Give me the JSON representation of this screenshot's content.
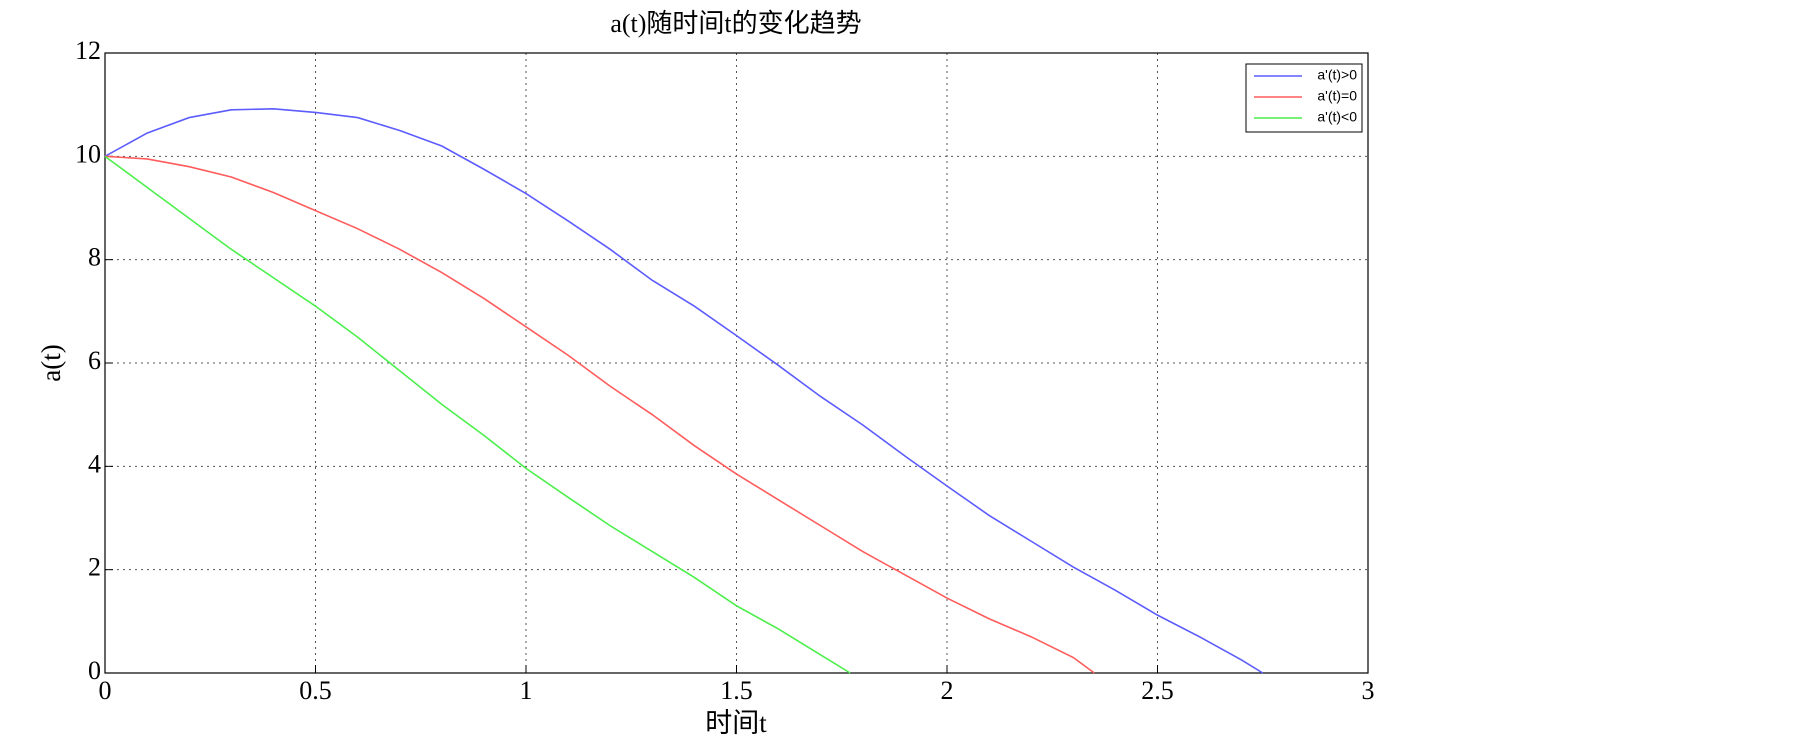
{
  "chart_data": {
    "type": "line",
    "title": "a(t)随时间t的变化趋势",
    "x_label": "时间t",
    "y_label": "a(t)",
    "xlim": [
      0,
      3
    ],
    "xticks": [
      0,
      0.5,
      1,
      1.5,
      2,
      2.5,
      3
    ],
    "ylim": [
      0,
      12
    ],
    "yticks": [
      0,
      2,
      4,
      6,
      8,
      10,
      12
    ],
    "grid": true,
    "legend": "upper right",
    "series": [
      {
        "name": "a'(t)>0",
        "color": "#5c5cff",
        "x": [
          0,
          0.1,
          0.2,
          0.3,
          0.4,
          0.5,
          0.6,
          0.7,
          0.8,
          0.9,
          1.0,
          1.1,
          1.2,
          1.3,
          1.4,
          1.5,
          1.6,
          1.7,
          1.8,
          1.9,
          2.0,
          2.1,
          2.2,
          2.3,
          2.4,
          2.5,
          2.6,
          2.7,
          2.75
        ],
        "values": [
          10,
          10.45,
          10.75,
          10.9,
          10.92,
          10.85,
          10.75,
          10.5,
          10.2,
          9.75,
          9.28,
          8.75,
          8.2,
          7.6,
          7.1,
          6.53,
          5.95,
          5.35,
          4.8,
          4.2,
          3.62,
          3.05,
          2.55,
          2.05,
          1.6,
          1.12,
          0.7,
          0.25,
          0
        ]
      },
      {
        "name": "a'(t)=0",
        "color": "#ff5c5c",
        "x": [
          0,
          0.1,
          0.2,
          0.3,
          0.4,
          0.5,
          0.6,
          0.7,
          0.8,
          0.9,
          1.0,
          1.1,
          1.2,
          1.3,
          1.4,
          1.5,
          1.6,
          1.7,
          1.8,
          1.9,
          2.0,
          2.1,
          2.2,
          2.3,
          2.35
        ],
        "values": [
          10,
          9.95,
          9.8,
          9.6,
          9.3,
          8.95,
          8.6,
          8.2,
          7.75,
          7.25,
          6.7,
          6.15,
          5.55,
          5.0,
          4.4,
          3.85,
          3.35,
          2.85,
          2.35,
          1.9,
          1.45,
          1.05,
          0.7,
          0.3,
          0
        ]
      },
      {
        "name": "a'(t)<0",
        "color": "#4cef4c",
        "x": [
          0,
          0.1,
          0.2,
          0.3,
          0.4,
          0.5,
          0.6,
          0.7,
          0.8,
          0.9,
          1.0,
          1.1,
          1.2,
          1.3,
          1.4,
          1.5,
          1.6,
          1.7,
          1.77
        ],
        "values": [
          10,
          9.4,
          8.8,
          8.2,
          7.65,
          7.1,
          6.5,
          5.85,
          5.2,
          4.6,
          3.96,
          3.4,
          2.85,
          2.35,
          1.85,
          1.3,
          0.85,
          0.35,
          0
        ]
      }
    ]
  }
}
